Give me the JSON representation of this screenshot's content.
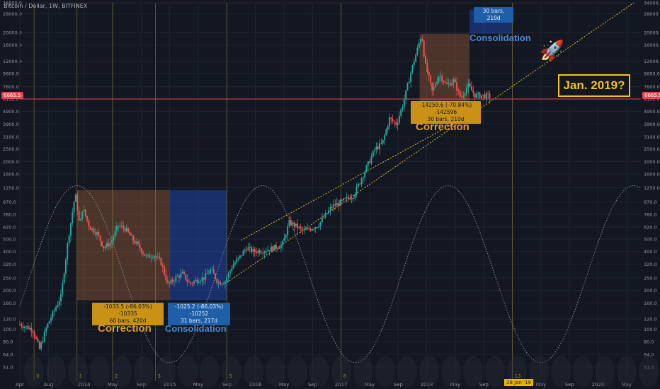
{
  "header": {
    "title": "Bitcoin / Dollar, 1W, BITFINEX"
  },
  "chart_data": {
    "type": "candlestick",
    "title": "Bitcoin / Dollar, 1W, BITFINEX",
    "y_scale": "log",
    "ylim": [
      40,
      34000
    ],
    "y_ticks": [
      "34000.0",
      "28000.0",
      "20000.0",
      "16000.0",
      "12000.0",
      "9600.0",
      "7600.0",
      "6100.0",
      "4900.0",
      "3900.0",
      "3100.0",
      "2500.0",
      "2000.0",
      "1600.0",
      "1250.0",
      "970.0",
      "780.0",
      "620.0",
      "500.0",
      "400.0",
      "320.0",
      "250.0",
      "200.0",
      "160.0",
      "120.0",
      "100.0",
      "80.0",
      "64.0",
      "51.0"
    ],
    "x_ticks": [
      "Apr",
      "Aug",
      "2014",
      "May",
      "Sep",
      "2015",
      "May",
      "Sep",
      "2016",
      "May",
      "Sep",
      "2017",
      "May",
      "Sep",
      "2018",
      "May",
      "Sep",
      "2019",
      "May",
      "Sep",
      "2020",
      "May"
    ],
    "x_tick_dates": [
      "2013-04",
      "2013-08",
      "2014-01",
      "2014-05",
      "2014-09",
      "2015-01",
      "2015-05",
      "2015-09",
      "2016-01",
      "2016-05",
      "2016-09",
      "2017-01",
      "2017-05",
      "2017-09",
      "2018-01",
      "2018-05",
      "2018-09",
      "2019-01",
      "2019-05",
      "2019-09",
      "2020-01",
      "2020-05"
    ],
    "price_path": [
      [
        "2013-04",
        110
      ],
      [
        "2013-06",
        100
      ],
      [
        "2013-07",
        70
      ],
      [
        "2013-08",
        105
      ],
      [
        "2013-10",
        180
      ],
      [
        "2013-11",
        500
      ],
      [
        "2013-12-01",
        1120
      ],
      [
        "2013-12-20",
        620
      ],
      [
        "2014-01",
        880
      ],
      [
        "2014-02",
        620
      ],
      [
        "2014-03",
        560
      ],
      [
        "2014-04",
        430
      ],
      [
        "2014-05",
        470
      ],
      [
        "2014-06",
        640
      ],
      [
        "2014-07",
        600
      ],
      [
        "2014-08",
        500
      ],
      [
        "2014-09",
        430
      ],
      [
        "2014-10",
        360
      ],
      [
        "2014-11",
        380
      ],
      [
        "2014-12",
        330
      ],
      [
        "2015-01",
        220
      ],
      [
        "2015-02",
        250
      ],
      [
        "2015-03",
        270
      ],
      [
        "2015-04",
        225
      ],
      [
        "2015-05",
        240
      ],
      [
        "2015-06",
        250
      ],
      [
        "2015-07",
        290
      ],
      [
        "2015-08",
        230
      ],
      [
        "2015-09",
        235
      ],
      [
        "2015-10",
        310
      ],
      [
        "2015-11",
        360
      ],
      [
        "2015-12",
        430
      ],
      [
        "2016-01",
        400
      ],
      [
        "2016-03",
        415
      ],
      [
        "2016-05",
        450
      ],
      [
        "2016-06",
        680
      ],
      [
        "2016-08",
        575
      ],
      [
        "2016-10",
        640
      ],
      [
        "2016-12",
        900
      ],
      [
        "2017-01",
        950
      ],
      [
        "2017-03",
        1100
      ],
      [
        "2017-05",
        1900
      ],
      [
        "2017-06",
        2500
      ],
      [
        "2017-07",
        2750
      ],
      [
        "2017-08",
        4300
      ],
      [
        "2017-09",
        3900
      ],
      [
        "2017-10",
        5800
      ],
      [
        "2017-11",
        9800
      ],
      [
        "2017-12-17",
        19500
      ],
      [
        "2018-01",
        11500
      ],
      [
        "2018-02",
        7000
      ],
      [
        "2018-03",
        9500
      ],
      [
        "2018-04",
        7800
      ],
      [
        "2018-05",
        8500
      ],
      [
        "2018-06",
        6200
      ],
      [
        "2018-07",
        7800
      ],
      [
        "2018-08",
        6500
      ],
      [
        "2018-09",
        6500
      ],
      [
        "2018-10",
        6400
      ]
    ],
    "current_price": "6665.5",
    "current_price_date": "2018-10",
    "current_line_price": 6100,
    "sine_wave": {
      "peak_price": 1300,
      "trough_price": 55,
      "trough_dates": [
        "2012-11",
        "2015-01",
        "2017-01",
        "2019-01",
        "2021-01"
      ]
    },
    "trend_lines": [
      {
        "from": [
          "2015-09",
          230
        ],
        "to": [
          "2020-06",
          34000
        ]
      },
      {
        "from": [
          "2015-11",
          490
        ],
        "to": [
          "2018-08",
          4950
        ]
      }
    ],
    "vertical_cycle_markers": [
      {
        "label": "0",
        "date": "2013-06"
      },
      {
        "label": "1",
        "date": "2013-12"
      },
      {
        "label": "2",
        "date": "2014-05"
      },
      {
        "label": "3",
        "date": "2014-11"
      },
      {
        "label": "5",
        "date": "2015-09"
      },
      {
        "label": "8",
        "date": "2017-01"
      },
      {
        "label": "13",
        "date": "2019-01"
      }
    ],
    "zones": [
      {
        "name": "Correction",
        "start": "2013-12",
        "end": "2015-01",
        "top": 1200,
        "bottom": 168,
        "color": "#c4743c",
        "measure": "-1033.5 (-86.03%) -10335",
        "bars": "60 bars, 420d"
      },
      {
        "name": "Consolidation",
        "start": "2015-01",
        "end": "2015-09",
        "top": 1200,
        "bottom": 168,
        "color": "#2962ff",
        "measure": "-1025.2 (-86.03%) -10252",
        "bars": "31 bars, 217d"
      },
      {
        "name": "Correction",
        "start": "2017-12",
        "end": "2018-07",
        "top": 19600,
        "bottom": 5700,
        "color": "#c4743c",
        "measure": "-14259.6 (-70.84%) -142596",
        "bars": "30 bars, 210d"
      },
      {
        "name": "Consolidation",
        "start": "2018-07",
        "end": "2019-01",
        "top": 30000,
        "bottom": 19600,
        "color": "#2962ff",
        "measure": "",
        "bars": "30 bars, 210d"
      }
    ],
    "annotation_text": "Jan. 2019?",
    "date_marker": "28 Jan '19",
    "colors": {
      "bull": "#26a69a",
      "bear": "#ef5350",
      "bg": "#131722",
      "grid": "#1f2433",
      "trend": "#e6c229"
    }
  }
}
